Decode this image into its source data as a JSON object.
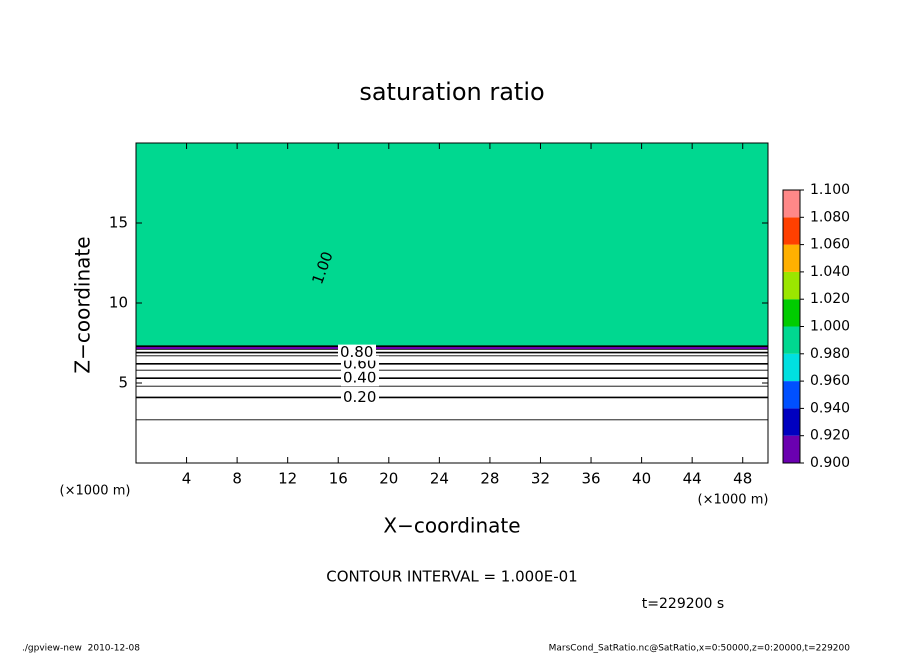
{
  "chart_data": {
    "type": "contour",
    "title": "saturation ratio",
    "x_label": "X−coordinate",
    "y_label": "Z−coordinate",
    "x_unit": "(×1000 m)",
    "xlim": [
      0,
      50
    ],
    "xticks": [
      4,
      8,
      12,
      16,
      20,
      24,
      28,
      32,
      36,
      40,
      44,
      48
    ],
    "ylim": [
      0,
      20
    ],
    "yticks": [
      5,
      10,
      15
    ],
    "field": {
      "z": [
        2.7,
        4.1,
        4.8,
        5.3,
        5.8,
        6.2,
        6.7,
        6.9,
        7.1,
        7.3
      ],
      "values": [
        0.1,
        0.2,
        0.3,
        0.4,
        0.5,
        0.6,
        0.7,
        0.8,
        0.9,
        1.0
      ]
    },
    "contour_labels": [
      {
        "value": 0.2,
        "label": "0.20"
      },
      {
        "value": 0.4,
        "label": "0.40"
      },
      {
        "value": 0.6,
        "label": "0.60"
      },
      {
        "value": 0.8,
        "label": "0.80"
      },
      {
        "value": 1.0,
        "label": "1.00"
      }
    ],
    "colorbar": {
      "ticks": [
        {
          "value": 0.9,
          "label": "0.900"
        },
        {
          "value": 0.92,
          "label": "0.920"
        },
        {
          "value": 0.94,
          "label": "0.940"
        },
        {
          "value": 0.96,
          "label": "0.960"
        },
        {
          "value": 0.98,
          "label": "0.980"
        },
        {
          "value": 1.0,
          "label": "1.000"
        },
        {
          "value": 1.02,
          "label": "1.020"
        },
        {
          "value": 1.04,
          "label": "1.040"
        },
        {
          "value": 1.06,
          "label": "1.060"
        },
        {
          "value": 1.08,
          "label": "1.080"
        },
        {
          "value": 1.1,
          "label": "1.100"
        }
      ],
      "colors": [
        "#6a00b0",
        "#0000c0",
        "#0050ff",
        "#00e0e0",
        "#00d890",
        "#00cc00",
        "#9be600",
        "#ffb000",
        "#ff4000",
        "#ff8888"
      ]
    },
    "contour_interval_text": "CONTOUR INTERVAL = 1.000E-01",
    "time_text": "t=229200 s",
    "footer_left": "./gpview-new  2010-12-08",
    "footer_right": "MarsCond_SatRatio.nc@SatRatio,x=0:50000,z=0:20000,t=229200"
  }
}
